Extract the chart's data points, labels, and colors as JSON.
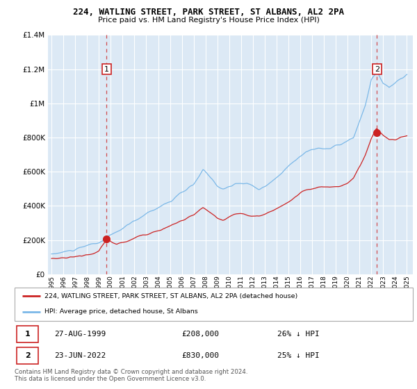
{
  "title": "224, WATLING STREET, PARK STREET, ST ALBANS, AL2 2PA",
  "subtitle": "Price paid vs. HM Land Registry's House Price Index (HPI)",
  "background_color": "#ffffff",
  "plot_bg_color": "#dce9f5",
  "grid_color": "#ffffff",
  "red_label": "224, WATLING STREET, PARK STREET, ST ALBANS, AL2 2PA (detached house)",
  "blue_label": "HPI: Average price, detached house, St Albans",
  "marker1_date": "27-AUG-1999",
  "marker1_price": 208000,
  "marker1_hpi_diff": "26% ↓ HPI",
  "marker2_date": "23-JUN-2022",
  "marker2_price": 830000,
  "marker2_hpi_diff": "25% ↓ HPI",
  "footnote": "Contains HM Land Registry data © Crown copyright and database right 2024.\nThis data is licensed under the Open Government Licence v3.0.",
  "ylim": [
    0,
    1400000
  ],
  "yticks": [
    0,
    200000,
    400000,
    600000,
    800000,
    1000000,
    1200000,
    1400000
  ],
  "ytick_labels": [
    "£0",
    "£200K",
    "£400K",
    "£600K",
    "£800K",
    "£1M",
    "£1.2M",
    "£1.4M"
  ],
  "hpi_color": "#7bb8e8",
  "price_color": "#cc2222",
  "marker1_x": 1999.65,
  "marker1_y": 208000,
  "marker2_x": 2022.47,
  "marker2_y": 830000,
  "xlim_left": 1994.7,
  "xlim_right": 2025.5
}
